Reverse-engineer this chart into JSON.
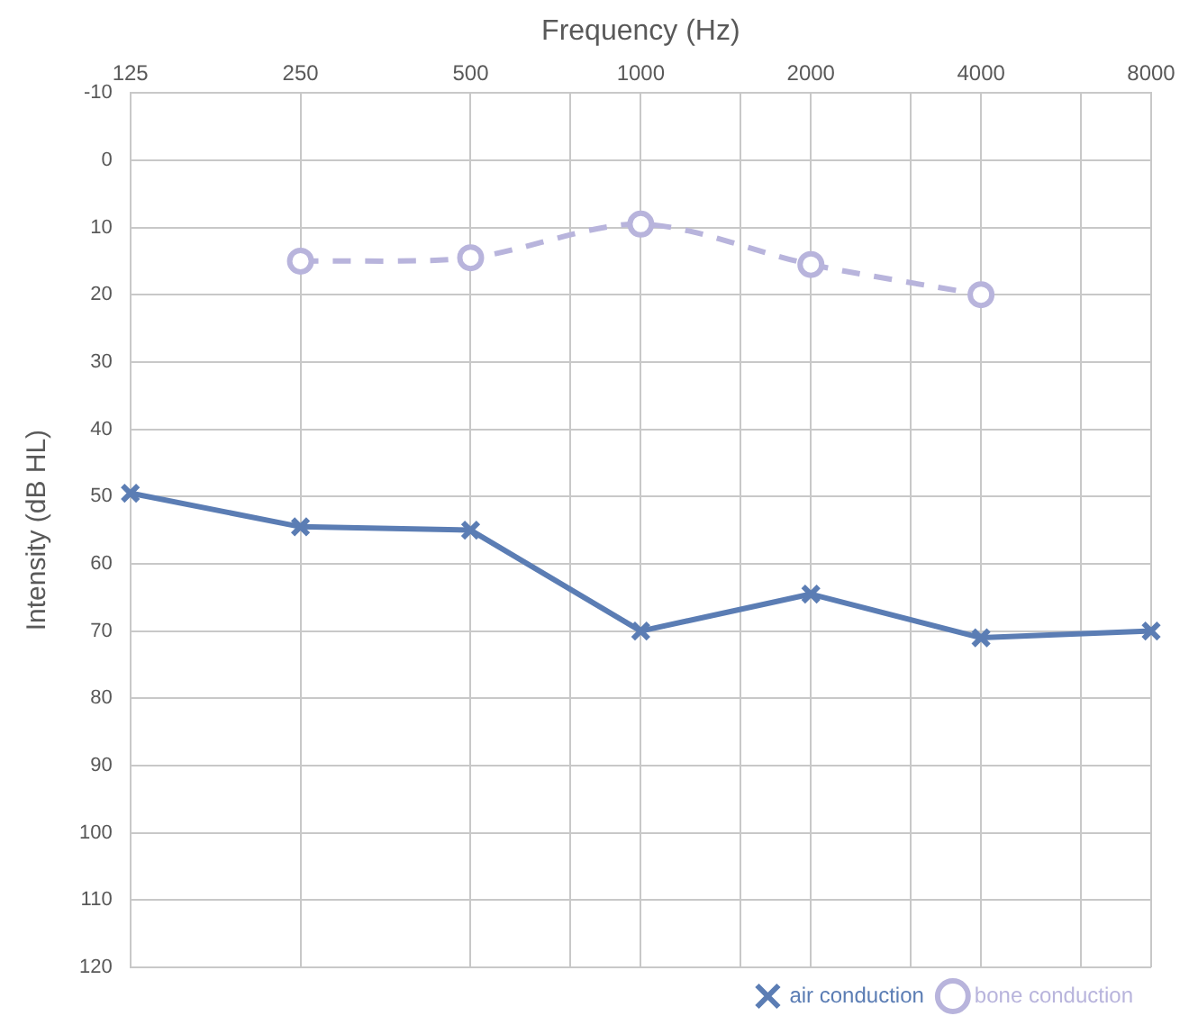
{
  "chart_data": {
    "type": "line",
    "xlabel": "Frequency (Hz)",
    "ylabel": "Intensity (dB HL)",
    "x": [
      125,
      250,
      500,
      1000,
      2000,
      4000,
      8000
    ],
    "series": [
      {
        "name": "air conduction",
        "color": "#5b7db4",
        "values": [
          49.5,
          54.5,
          55,
          70,
          64.5,
          71,
          70
        ],
        "marker": "cross",
        "line_style": "solid"
      },
      {
        "name": "bone conduction",
        "color": "#b8b4dc",
        "values": [
          null,
          15,
          14.5,
          9.5,
          15.5,
          20,
          null
        ],
        "marker": "circle",
        "line_style": "dashed"
      }
    ],
    "log": "x",
    "xlim": [
      125,
      8000
    ],
    "xticks": [
      125,
      250,
      500,
      {
        "value": 750,
        "label": null
      },
      1000,
      {
        "value": 1500,
        "label": null
      },
      2000,
      {
        "value": 3000,
        "label": null
      },
      4000,
      {
        "value": 6000,
        "label": null
      },
      8000
    ],
    "ylim": [
      120,
      -10
    ],
    "yticks": [
      -10,
      0,
      10,
      20,
      30,
      40,
      50,
      60,
      70,
      80,
      90,
      100,
      110,
      120
    ],
    "grid": true,
    "legend": "bottom right"
  }
}
